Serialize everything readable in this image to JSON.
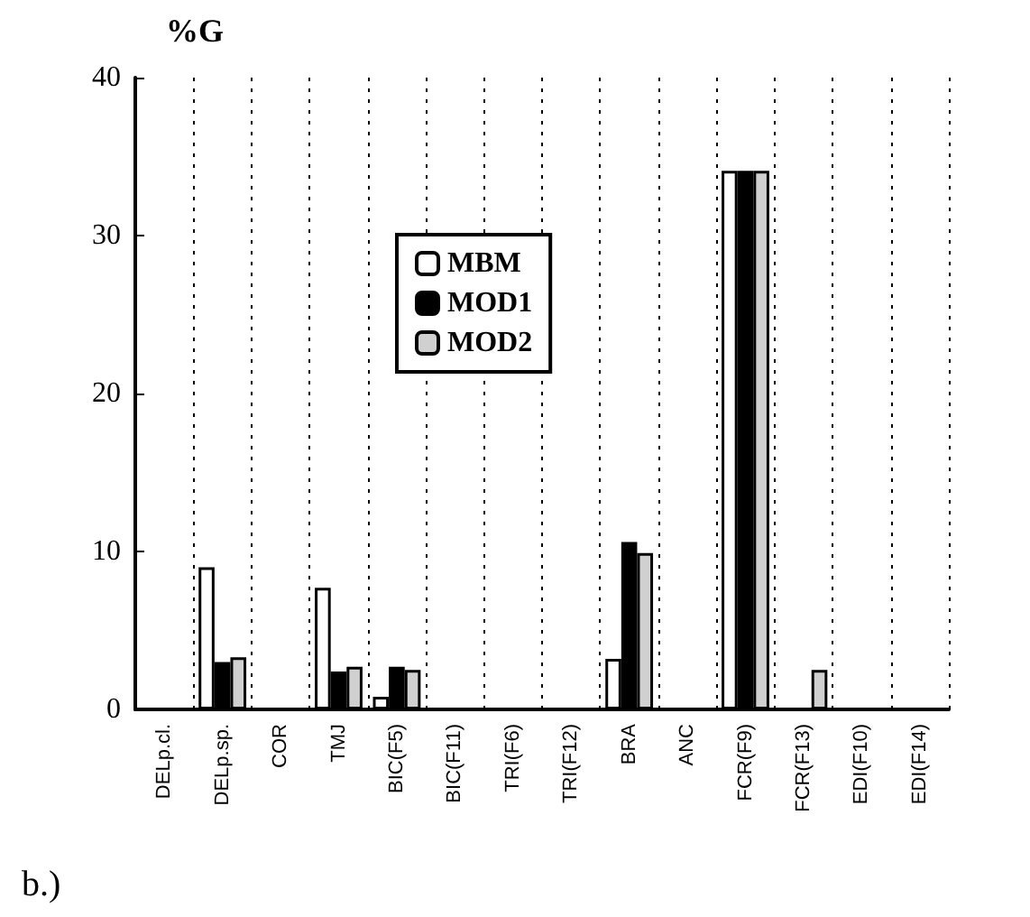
{
  "chart_data": {
    "type": "bar",
    "ylabel": "%G",
    "categories": [
      "DELp.cl.",
      "DELp.sp.",
      "COR",
      "TMJ",
      "BIC(F5)",
      "BIC(F11)",
      "TRI(F6)",
      "TRI(F12)",
      "BRA",
      "ANC",
      "FCR(F9)",
      "FCR(F13)",
      "EDI(F10)",
      "EDI(F14)"
    ],
    "series": [
      {
        "name": "MBM",
        "color": "#ffffff",
        "values": [
          0,
          9.0,
          0,
          7.7,
          0.8,
          0,
          0,
          0,
          3.2,
          0,
          34.1,
          0,
          0,
          0
        ]
      },
      {
        "name": "MOD1",
        "color": "#000000",
        "values": [
          0,
          3.0,
          0,
          2.4,
          2.7,
          0,
          0,
          0,
          10.6,
          0,
          34.1,
          0,
          0,
          0
        ]
      },
      {
        "name": "MOD2",
        "color": "#d0d0d0",
        "values": [
          0,
          3.3,
          0,
          2.7,
          2.5,
          0,
          0,
          0,
          9.9,
          0,
          34.1,
          2.5,
          0,
          0
        ]
      }
    ],
    "ylim": [
      0,
      40
    ],
    "yticks": [
      0,
      10,
      20,
      30,
      40
    ],
    "grid": "x",
    "legend": "top",
    "annotations": [
      "b.)"
    ]
  }
}
